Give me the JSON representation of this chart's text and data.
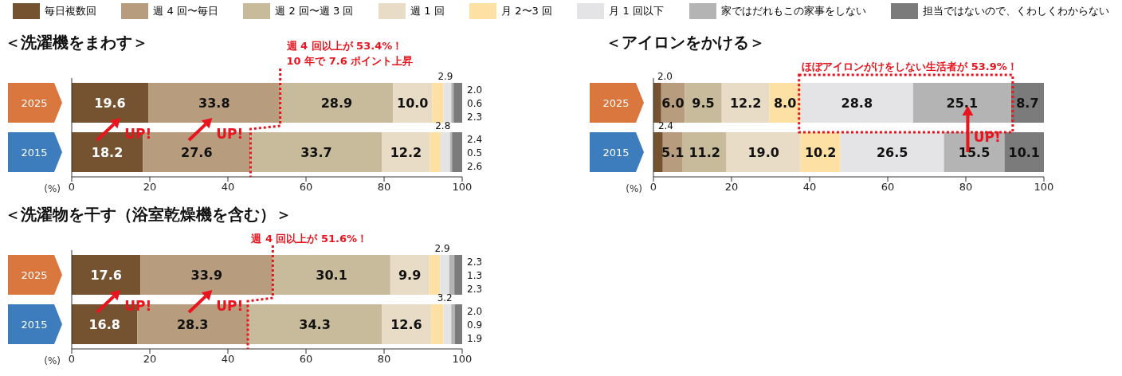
{
  "chart_data": [
    {
      "type": "bar",
      "orientation": "horizontal",
      "stacked": true,
      "title": "＜洗濯機をまわす＞",
      "xlabel": "(%)",
      "legend": "top",
      "categories": [
        "2025",
        "2015"
      ],
      "series": [
        {
          "name": "毎日複数回",
          "color": "#765330",
          "values": [
            19.6,
            18.2
          ],
          "value_labels": [
            "19.6",
            "18.2"
          ]
        },
        {
          "name": "週 4 回〜毎日",
          "color": "#b89c7e",
          "values": [
            33.8,
            27.6
          ],
          "value_labels": [
            "33.8",
            "27.6"
          ]
        },
        {
          "name": "週 2 回〜週 3 回",
          "color": "#c8bb9b",
          "values": [
            28.9,
            33.7
          ],
          "value_labels": [
            "28.9",
            "33.7"
          ]
        },
        {
          "name": "週 1 回",
          "color": "#e9dcc6",
          "values": [
            10.0,
            12.2
          ],
          "value_labels": [
            "10.0",
            "12.2"
          ]
        },
        {
          "name": "月 2〜3 回",
          "color": "#fce0a4",
          "values": [
            2.9,
            2.8
          ],
          "value_labels": [
            "2.9",
            "2.8"
          ]
        },
        {
          "name": "月 1 回以下",
          "color": "#e4e4e6",
          "values": [
            2.0,
            2.4
          ],
          "value_labels": [
            "2.0",
            "2.4"
          ]
        },
        {
          "name": "家ではだれもこの家事をしない",
          "color": "#b4b4b4",
          "values": [
            0.6,
            0.5
          ],
          "value_labels": [
            "0.6",
            "0.5"
          ]
        },
        {
          "name": "担当ではないので、くわしくわからない",
          "color": "#7b7b7b",
          "values": [
            2.3,
            2.6
          ],
          "value_labels": [
            "2.3",
            "2.6"
          ]
        }
      ],
      "xlim": [
        0,
        100
      ],
      "xticks": [
        0,
        20,
        40,
        60,
        80,
        100
      ],
      "annotations": [
        "週 4 回以上が 53.4%！",
        "10 年で 7.6 ポイント上昇",
        "UP!",
        "UP!"
      ]
    },
    {
      "type": "bar",
      "orientation": "horizontal",
      "stacked": true,
      "title": "＜洗濯物を干す（浴室乾燥機を含む）＞",
      "xlabel": "(%)",
      "categories": [
        "2025",
        "2015"
      ],
      "series": [
        {
          "color": "#765330",
          "values": [
            17.6,
            16.8
          ],
          "value_labels": [
            "17.6",
            "16.8"
          ]
        },
        {
          "color": "#b89c7e",
          "values": [
            33.9,
            28.3
          ],
          "value_labels": [
            "33.9",
            "28.3"
          ]
        },
        {
          "color": "#c8bb9b",
          "values": [
            30.1,
            34.3
          ],
          "value_labels": [
            "30.1",
            "34.3"
          ]
        },
        {
          "color": "#e9dcc6",
          "values": [
            9.9,
            12.6
          ],
          "value_labels": [
            "9.9",
            "12.6"
          ]
        },
        {
          "color": "#fce0a4",
          "values": [
            2.9,
            3.2
          ],
          "value_labels": [
            "2.9",
            "3.2"
          ]
        },
        {
          "color": "#e4e4e6",
          "values": [
            2.3,
            2.0
          ],
          "value_labels": [
            "2.3",
            "2.0"
          ]
        },
        {
          "color": "#b4b4b4",
          "values": [
            1.3,
            0.9
          ],
          "value_labels": [
            "1.3",
            "0.9"
          ]
        },
        {
          "color": "#7b7b7b",
          "values": [
            2.3,
            1.9
          ],
          "value_labels": [
            "2.3",
            "1.9"
          ]
        }
      ],
      "xlim": [
        0,
        100
      ],
      "xticks": [
        0,
        20,
        40,
        60,
        80,
        100
      ],
      "annotations": [
        "週 4 回以上が 51.6%！",
        "UP!",
        "UP!"
      ]
    },
    {
      "type": "bar",
      "orientation": "horizontal",
      "stacked": true,
      "title": "＜アイロンをかける＞",
      "xlabel": "(%)",
      "categories": [
        "2025",
        "2015"
      ],
      "series": [
        {
          "color": "#765330",
          "values": [
            2.0,
            2.4
          ],
          "value_labels": [
            "2.0",
            "2.4"
          ]
        },
        {
          "color": "#b89c7e",
          "values": [
            6.0,
            5.1
          ],
          "value_labels": [
            "6.0",
            "5.1"
          ]
        },
        {
          "color": "#c8bb9b",
          "values": [
            9.5,
            11.2
          ],
          "value_labels": [
            "9.5",
            "11.2"
          ]
        },
        {
          "color": "#e9dcc6",
          "values": [
            12.2,
            19.0
          ],
          "value_labels": [
            "12.2",
            "19.0"
          ]
        },
        {
          "color": "#fce0a4",
          "values": [
            8.0,
            10.2
          ],
          "value_labels": [
            "8.0",
            "10.2"
          ]
        },
        {
          "color": "#e4e4e6",
          "values": [
            28.8,
            26.5
          ],
          "value_labels": [
            "28.8",
            "26.5"
          ]
        },
        {
          "color": "#b4b4b4",
          "values": [
            25.1,
            15.5
          ],
          "value_labels": [
            "25.1",
            "15.5"
          ]
        },
        {
          "color": "#7b7b7b",
          "values": [
            8.7,
            10.1
          ],
          "value_labels": [
            "8.7",
            "10.1"
          ]
        }
      ],
      "xlim": [
        0,
        100
      ],
      "xticks": [
        0,
        20,
        40,
        60,
        80,
        100
      ],
      "annotations": [
        "ほぼアイロンがけをしない生活者が 53.9%！",
        "UP!"
      ]
    }
  ]
}
